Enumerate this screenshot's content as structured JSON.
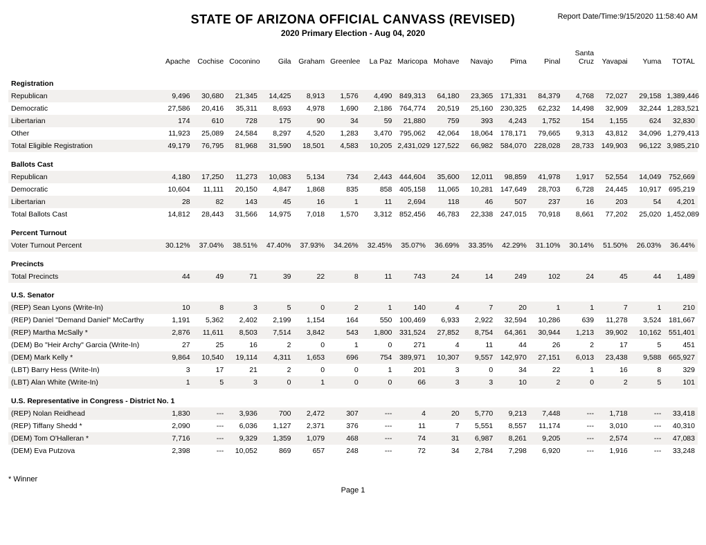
{
  "header": {
    "title": "STATE OF ARIZONA OFFICIAL CANVASS (REVISED)",
    "subtitle": "2020 Primary Election - Aug 04, 2020",
    "report_date": "Report Date/Time:9/15/2020 11:58:40 AM"
  },
  "counties": [
    "Apache",
    "Cochise",
    "Coconino",
    "Gila",
    "Graham",
    "Greenlee",
    "La Paz",
    "Maricopa",
    "Mohave",
    "Navajo",
    "Pima",
    "Pinal",
    "Santa Cruz",
    "Yavapai",
    "Yuma",
    "TOTAL"
  ],
  "sections": [
    {
      "name": "Registration",
      "rows": [
        {
          "label": "Republican",
          "cells": [
            "9,496",
            "30,680",
            "21,345",
            "14,425",
            "8,913",
            "1,576",
            "4,490",
            "849,313",
            "64,180",
            "23,365",
            "171,331",
            "84,379",
            "4,768",
            "72,027",
            "29,158",
            "1,389,446"
          ]
        },
        {
          "label": "Democratic",
          "cells": [
            "27,586",
            "20,416",
            "35,311",
            "8,693",
            "4,978",
            "1,690",
            "2,186",
            "764,774",
            "20,519",
            "25,160",
            "230,325",
            "62,232",
            "14,498",
            "32,909",
            "32,244",
            "1,283,521"
          ]
        },
        {
          "label": "Libertarian",
          "cells": [
            "174",
            "610",
            "728",
            "175",
            "90",
            "34",
            "59",
            "21,880",
            "759",
            "393",
            "4,243",
            "1,752",
            "154",
            "1,155",
            "624",
            "32,830"
          ]
        },
        {
          "label": "Other",
          "cells": [
            "11,923",
            "25,089",
            "24,584",
            "8,297",
            "4,520",
            "1,283",
            "3,470",
            "795,062",
            "42,064",
            "18,064",
            "178,171",
            "79,665",
            "9,313",
            "43,812",
            "34,096",
            "1,279,413"
          ]
        },
        {
          "label": "Total Eligible Registration",
          "cells": [
            "49,179",
            "76,795",
            "81,968",
            "31,590",
            "18,501",
            "4,583",
            "10,205",
            "2,431,029",
            "127,522",
            "66,982",
            "584,070",
            "228,028",
            "28,733",
            "149,903",
            "96,122",
            "3,985,210"
          ]
        }
      ]
    },
    {
      "name": "Ballots Cast",
      "rows": [
        {
          "label": "Republican",
          "cells": [
            "4,180",
            "17,250",
            "11,273",
            "10,083",
            "5,134",
            "734",
            "2,443",
            "444,604",
            "35,600",
            "12,011",
            "98,859",
            "41,978",
            "1,917",
            "52,554",
            "14,049",
            "752,669"
          ]
        },
        {
          "label": "Democratic",
          "cells": [
            "10,604",
            "11,111",
            "20,150",
            "4,847",
            "1,868",
            "835",
            "858",
            "405,158",
            "11,065",
            "10,281",
            "147,649",
            "28,703",
            "6,728",
            "24,445",
            "10,917",
            "695,219"
          ]
        },
        {
          "label": "Libertarian",
          "cells": [
            "28",
            "82",
            "143",
            "45",
            "16",
            "1",
            "11",
            "2,694",
            "118",
            "46",
            "507",
            "237",
            "16",
            "203",
            "54",
            "4,201"
          ]
        },
        {
          "label": "Total Ballots Cast",
          "cells": [
            "14,812",
            "28,443",
            "31,566",
            "14,975",
            "7,018",
            "1,570",
            "3,312",
            "852,456",
            "46,783",
            "22,338",
            "247,015",
            "70,918",
            "8,661",
            "77,202",
            "25,020",
            "1,452,089"
          ]
        }
      ]
    },
    {
      "name": "Percent Turnout",
      "rows": [
        {
          "label": "Voter Turnout Percent",
          "cells": [
            "30.12%",
            "37.04%",
            "38.51%",
            "47.40%",
            "37.93%",
            "34.26%",
            "32.45%",
            "35.07%",
            "36.69%",
            "33.35%",
            "42.29%",
            "31.10%",
            "30.14%",
            "51.50%",
            "26.03%",
            "36.44%"
          ]
        }
      ]
    },
    {
      "name": "Precincts",
      "rows": [
        {
          "label": "Total Precincts",
          "cells": [
            "44",
            "49",
            "71",
            "39",
            "22",
            "8",
            "11",
            "743",
            "24",
            "14",
            "249",
            "102",
            "24",
            "45",
            "44",
            "1,489"
          ]
        }
      ]
    },
    {
      "name": "U.S. Senator",
      "rows": [
        {
          "label": "(REP) Sean Lyons (Write-In)",
          "cells": [
            "10",
            "8",
            "3",
            "5",
            "0",
            "2",
            "1",
            "140",
            "4",
            "7",
            "20",
            "1",
            "1",
            "7",
            "1",
            "210"
          ]
        },
        {
          "label": "(REP) Daniel \"Demand Daniel\" McCarthy",
          "cells": [
            "1,191",
            "5,362",
            "2,402",
            "2,199",
            "1,154",
            "164",
            "550",
            "100,469",
            "6,933",
            "2,922",
            "32,594",
            "10,286",
            "639",
            "11,278",
            "3,524",
            "181,667"
          ]
        },
        {
          "label": "(REP) Martha McSally *",
          "cells": [
            "2,876",
            "11,611",
            "8,503",
            "7,514",
            "3,842",
            "543",
            "1,800",
            "331,524",
            "27,852",
            "8,754",
            "64,361",
            "30,944",
            "1,213",
            "39,902",
            "10,162",
            "551,401"
          ]
        },
        {
          "label": "(DEM) Bo \"Heir Archy\" Garcia (Write-In)",
          "cells": [
            "27",
            "25",
            "16",
            "2",
            "0",
            "1",
            "0",
            "271",
            "4",
            "11",
            "44",
            "26",
            "2",
            "17",
            "5",
            "451"
          ]
        },
        {
          "label": "(DEM) Mark Kelly *",
          "cells": [
            "9,864",
            "10,540",
            "19,114",
            "4,311",
            "1,653",
            "696",
            "754",
            "389,971",
            "10,307",
            "9,557",
            "142,970",
            "27,151",
            "6,013",
            "23,438",
            "9,588",
            "665,927"
          ]
        },
        {
          "label": "(LBT) Barry Hess (Write-In)",
          "cells": [
            "3",
            "17",
            "21",
            "2",
            "0",
            "0",
            "1",
            "201",
            "3",
            "0",
            "34",
            "22",
            "1",
            "16",
            "8",
            "329"
          ]
        },
        {
          "label": "(LBT) Alan White (Write-In)",
          "cells": [
            "1",
            "5",
            "3",
            "0",
            "1",
            "0",
            "0",
            "66",
            "3",
            "3",
            "10",
            "2",
            "0",
            "2",
            "5",
            "101"
          ]
        }
      ]
    },
    {
      "name": "U.S. Representative in Congress - District No. 1",
      "rows": [
        {
          "label": "(REP) Nolan Reidhead",
          "cells": [
            "1,830",
            "---",
            "3,936",
            "700",
            "2,472",
            "307",
            "---",
            "4",
            "20",
            "5,770",
            "9,213",
            "7,448",
            "---",
            "1,718",
            "---",
            "33,418"
          ]
        },
        {
          "label": "(REP) Tiffany Shedd *",
          "cells": [
            "2,090",
            "---",
            "6,036",
            "1,127",
            "2,371",
            "376",
            "---",
            "11",
            "7",
            "5,551",
            "8,557",
            "11,174",
            "---",
            "3,010",
            "---",
            "40,310"
          ]
        },
        {
          "label": "(DEM) Tom O'Halleran *",
          "cells": [
            "7,716",
            "---",
            "9,329",
            "1,359",
            "1,079",
            "468",
            "---",
            "74",
            "31",
            "6,987",
            "8,261",
            "9,205",
            "---",
            "2,574",
            "---",
            "47,083"
          ]
        },
        {
          "label": "(DEM) Eva Putzova",
          "cells": [
            "2,398",
            "---",
            "10,052",
            "869",
            "657",
            "248",
            "---",
            "72",
            "34",
            "2,784",
            "7,298",
            "6,920",
            "---",
            "1,916",
            "---",
            "33,248"
          ]
        }
      ]
    }
  ],
  "footer": {
    "winner_note": "* Winner",
    "page": "Page 1"
  }
}
